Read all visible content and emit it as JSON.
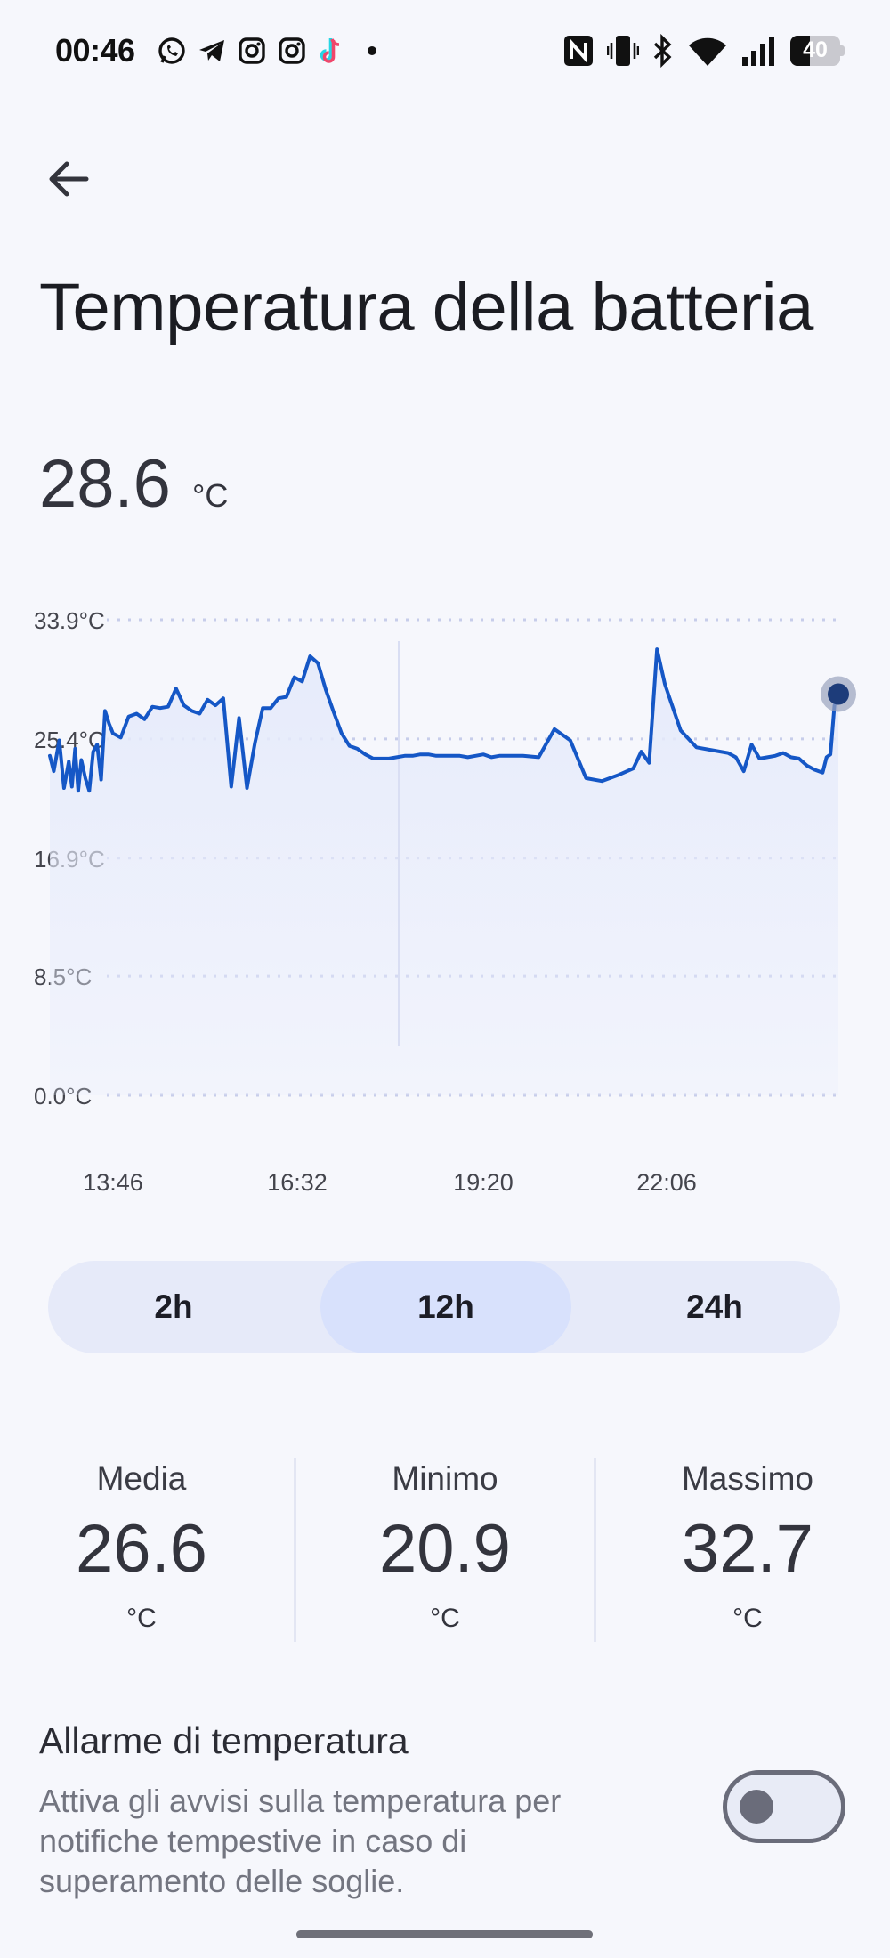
{
  "status_bar": {
    "time": "00:46",
    "battery_level": "40",
    "left_icons": [
      "whatsapp-icon",
      "telegram-icon",
      "instagram-icon",
      "instagram-icon",
      "tiktok-icon",
      "dot-icon"
    ],
    "right_icons": [
      "nfc-icon",
      "vibrate-icon",
      "bluetooth-icon",
      "wifi-icon",
      "signal-icon",
      "battery-icon"
    ]
  },
  "header": {
    "title": "Temperatura della batteria"
  },
  "current": {
    "value": "28.6",
    "unit": "°C"
  },
  "chart_data": {
    "type": "area",
    "y_tick_labels": [
      "33.9°C",
      "25.4°C",
      "16.9°C",
      "8.5°C",
      "0.0°C"
    ],
    "y_ticks": [
      33.9,
      25.4,
      16.9,
      8.5,
      0.0
    ],
    "ylim": [
      0.0,
      33.9
    ],
    "x_tick_labels": [
      "13:46",
      "16:32",
      "19:20",
      "22:06"
    ],
    "grid": true,
    "line_color": "#1557c6",
    "fill_color": "#e6ebfb",
    "series": [
      {
        "x": [
          0.0,
          0.005,
          0.012,
          0.018,
          0.024,
          0.028,
          0.032,
          0.036,
          0.04,
          0.045,
          0.05,
          0.055,
          0.06,
          0.065,
          0.07,
          0.075,
          0.08,
          0.09,
          0.1,
          0.11,
          0.12,
          0.13,
          0.14,
          0.15,
          0.16,
          0.17,
          0.18,
          0.19,
          0.2,
          0.21,
          0.22,
          0.23,
          0.24,
          0.25,
          0.26,
          0.27,
          0.28,
          0.29,
          0.3,
          0.31,
          0.32,
          0.33,
          0.34,
          0.35,
          0.36,
          0.37,
          0.38,
          0.39,
          0.4,
          0.41,
          0.42,
          0.43,
          0.44,
          0.45,
          0.46,
          0.47,
          0.48,
          0.49,
          0.5,
          0.51,
          0.52,
          0.53,
          0.54,
          0.55,
          0.56,
          0.57,
          0.58,
          0.6,
          0.62,
          0.64,
          0.66,
          0.68,
          0.7,
          0.72,
          0.74,
          0.75,
          0.76,
          0.77,
          0.78,
          0.8,
          0.82,
          0.84,
          0.86,
          0.87,
          0.88,
          0.89,
          0.9,
          0.91,
          0.92,
          0.93,
          0.94,
          0.95,
          0.96,
          0.97,
          0.98,
          0.985,
          0.99,
          0.995,
          1.0
        ],
        "y": [
          24.2,
          23.1,
          25.3,
          21.9,
          23.8,
          22.0,
          24.7,
          21.7,
          23.9,
          22.6,
          21.7,
          24.5,
          25.0,
          22.5,
          27.4,
          26.5,
          25.8,
          25.5,
          27.0,
          27.2,
          26.8,
          27.7,
          27.6,
          27.7,
          29.0,
          27.8,
          27.4,
          27.2,
          28.2,
          27.8,
          28.3,
          22.0,
          26.9,
          21.9,
          25.1,
          27.6,
          27.6,
          28.3,
          28.4,
          29.8,
          29.5,
          31.3,
          30.8,
          28.9,
          27.3,
          25.8,
          24.9,
          24.7,
          24.3,
          24.0,
          24.0,
          24.0,
          24.1,
          24.2,
          24.2,
          24.3,
          24.3,
          24.2,
          24.2,
          24.2,
          24.2,
          24.1,
          24.2,
          24.3,
          24.1,
          24.2,
          24.2,
          24.2,
          24.1,
          26.1,
          25.3,
          22.6,
          22.4,
          22.8,
          23.3,
          24.5,
          23.7,
          31.8,
          29.3,
          26.0,
          24.8,
          24.6,
          24.4,
          24.1,
          23.1,
          25.0,
          24.0,
          24.1,
          24.2,
          24.4,
          24.1,
          24.0,
          23.5,
          23.2,
          23.0,
          24.1,
          24.3,
          27.8,
          28.6
        ]
      }
    ]
  },
  "range_selector": {
    "options": [
      "2h",
      "12h",
      "24h"
    ],
    "selected": "12h"
  },
  "stats": [
    {
      "label": "Media",
      "value": "26.6",
      "unit": "°C"
    },
    {
      "label": "Minimo",
      "value": "20.9",
      "unit": "°C"
    },
    {
      "label": "Massimo",
      "value": "32.7",
      "unit": "°C"
    }
  ],
  "alarm": {
    "title": "Allarme di temperatura",
    "description": "Attiva gli avvisi sulla temperatura per notifiche tempestive in caso di superamento delle soglie.",
    "enabled": false
  }
}
